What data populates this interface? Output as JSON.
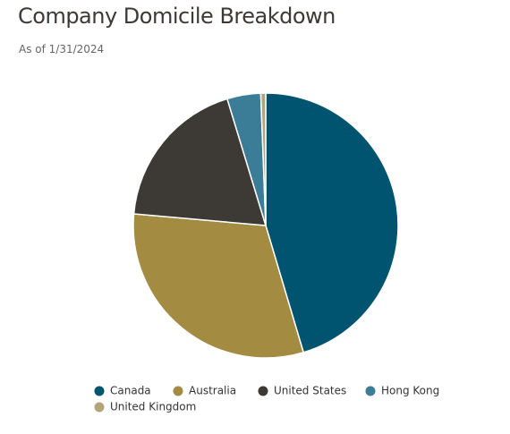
{
  "chart_data": {
    "type": "pie",
    "title": "Company Domicile Breakdown",
    "subtitle": "As of 1/31/2024",
    "categories": [
      "Canada",
      "Australia",
      "United States",
      "Hong Kong",
      "United Kingdom"
    ],
    "values": [
      45.4,
      31.0,
      18.9,
      4.1,
      0.6
    ],
    "colors": [
      "#00546f",
      "#a38b42",
      "#3d3935",
      "#3b7d96",
      "#b5a37a"
    ]
  }
}
